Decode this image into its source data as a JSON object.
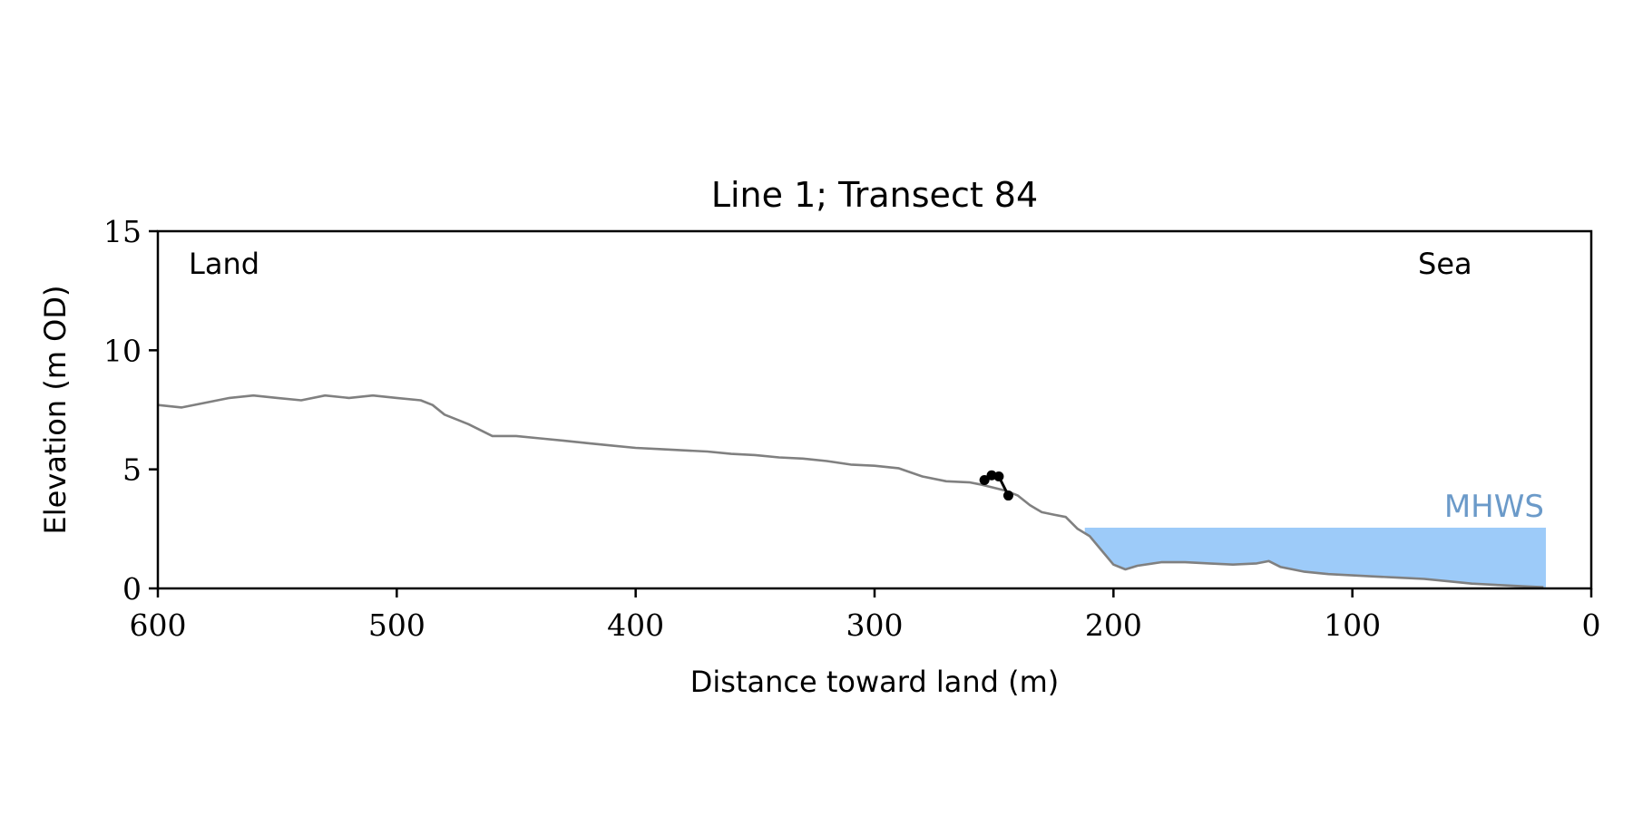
{
  "chart_data": {
    "type": "line",
    "title": "Line 1; Transect 84",
    "xlabel": "Distance toward land (m)",
    "ylabel": "Elevation (m OD)",
    "xlim": [
      600,
      0
    ],
    "ylim": [
      0,
      15
    ],
    "xticks": [
      600,
      500,
      400,
      300,
      200,
      100,
      0
    ],
    "yticks": [
      0,
      5,
      10,
      15
    ],
    "grid": false,
    "annotations": {
      "land": "Land",
      "sea": "Sea",
      "mhws": "MHWS"
    },
    "colors": {
      "profile": "#808080",
      "feature": "#000000",
      "water": "#9dcbf9",
      "mhws_label": "#6b9ac9"
    },
    "mhws": {
      "elevation": 2.55,
      "x_start": 212,
      "x_end": 19
    },
    "series": [
      {
        "style": "profile",
        "x": [
          600,
          590,
          580,
          570,
          560,
          550,
          540,
          530,
          520,
          510,
          500,
          490,
          485,
          480,
          470,
          460,
          450,
          440,
          430,
          420,
          410,
          400,
          390,
          380,
          370,
          360,
          350,
          340,
          330,
          320,
          310,
          300,
          290,
          280,
          270,
          260,
          255,
          245,
          240,
          235,
          230,
          225,
          220,
          215,
          210,
          205,
          200,
          195,
          190,
          180,
          170,
          160,
          150,
          140,
          135,
          130,
          120,
          110,
          100,
          90,
          80,
          70,
          60,
          50,
          40,
          30,
          20
        ],
        "y": [
          7.7,
          7.6,
          7.8,
          8.0,
          8.1,
          8.0,
          7.9,
          8.1,
          8.0,
          8.1,
          8.0,
          7.9,
          7.7,
          7.3,
          6.9,
          6.4,
          6.4,
          6.3,
          6.2,
          6.1,
          6.0,
          5.9,
          5.85,
          5.8,
          5.75,
          5.65,
          5.6,
          5.5,
          5.45,
          5.35,
          5.2,
          5.15,
          5.05,
          4.7,
          4.5,
          4.45,
          4.35,
          4.1,
          3.9,
          3.5,
          3.2,
          3.1,
          3.0,
          2.5,
          2.2,
          1.6,
          1.0,
          0.8,
          0.95,
          1.1,
          1.1,
          1.05,
          1.0,
          1.05,
          1.15,
          0.9,
          0.7,
          0.6,
          0.55,
          0.5,
          0.45,
          0.4,
          0.3,
          0.2,
          0.15,
          0.1,
          0.05
        ]
      },
      {
        "style": "feature",
        "x": [
          254,
          251,
          248,
          244
        ],
        "y": [
          4.55,
          4.75,
          4.7,
          3.9
        ]
      }
    ]
  }
}
